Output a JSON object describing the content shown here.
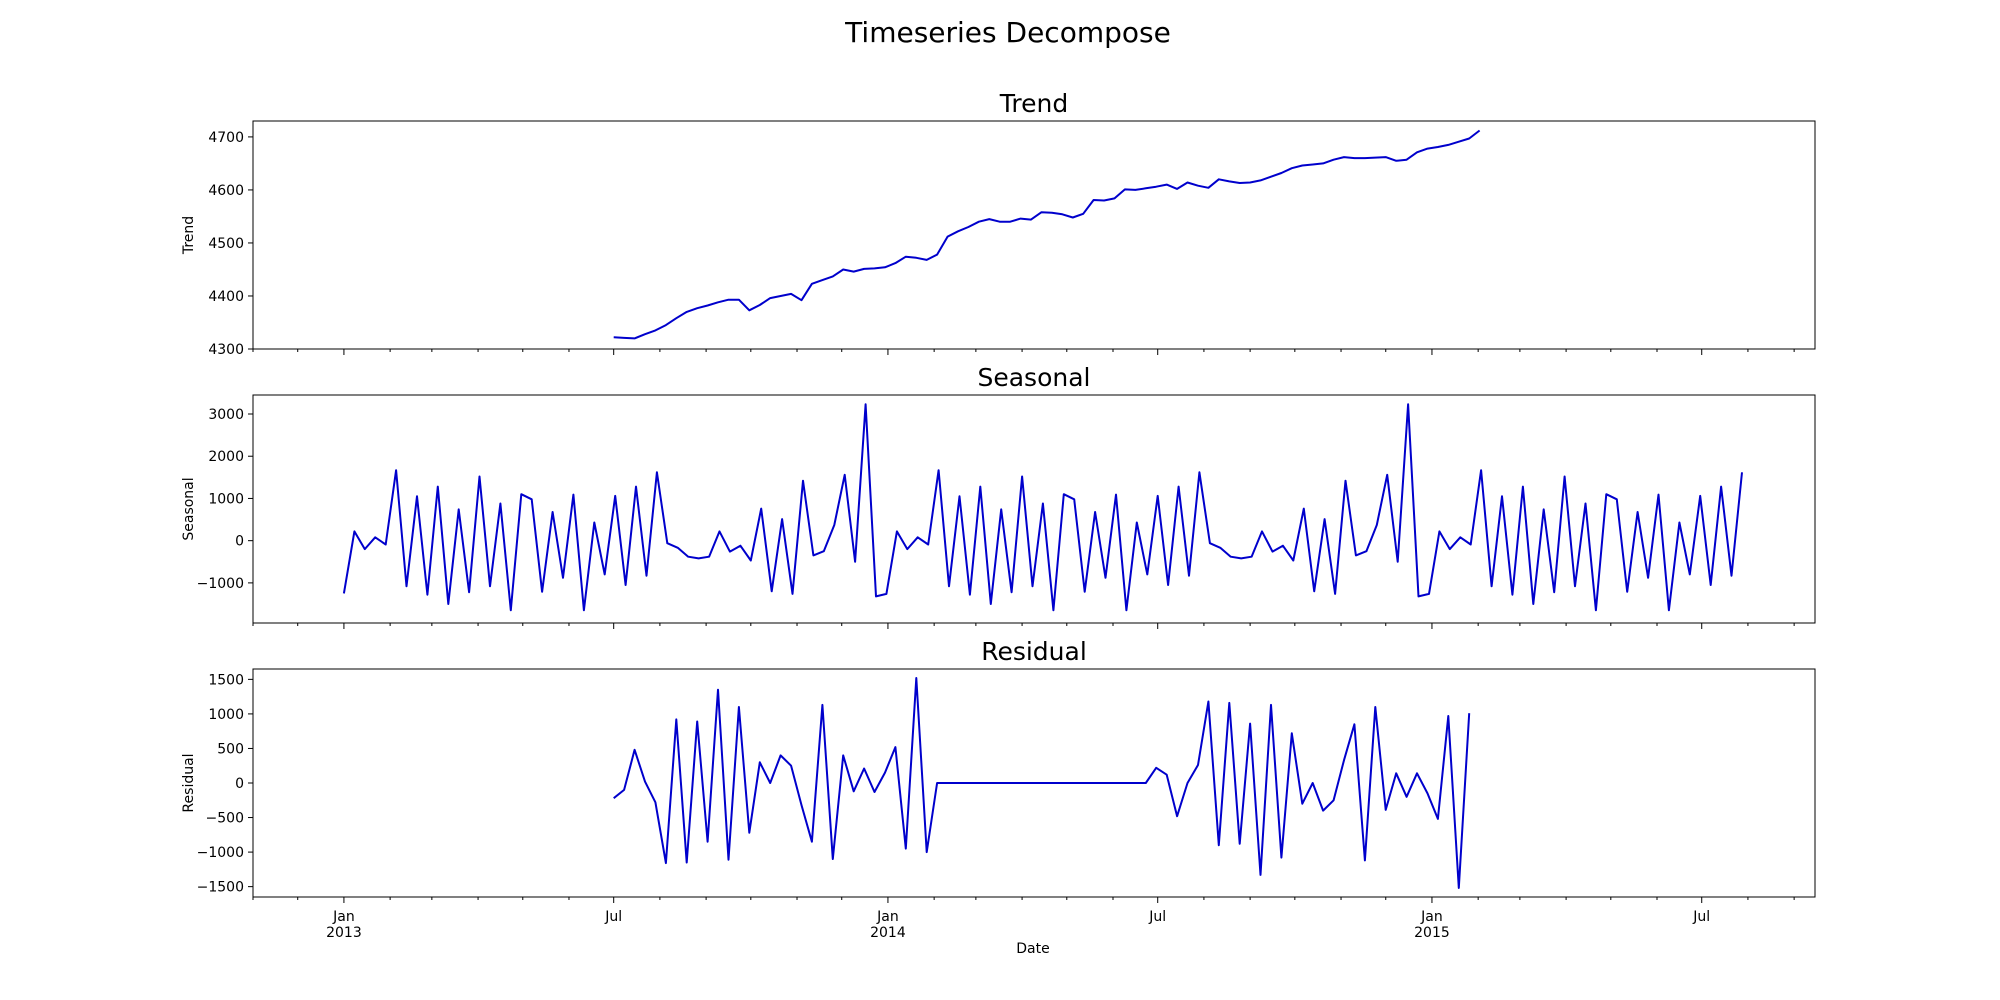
{
  "figure": {
    "title": "Timeseries Decompose",
    "xlabel": "Date",
    "x_tick_labels": [
      {
        "date": "2013-01-01",
        "line1": "Jan",
        "line2": "2013"
      },
      {
        "date": "2013-07-01",
        "line1": "Jul",
        "line2": ""
      },
      {
        "date": "2014-01-01",
        "line1": "Jan",
        "line2": "2014"
      },
      {
        "date": "2014-07-01",
        "line1": "Jul",
        "line2": ""
      },
      {
        "date": "2015-01-01",
        "line1": "Jan",
        "line2": "2015"
      },
      {
        "date": "2015-07-01",
        "line1": "Jul",
        "line2": ""
      }
    ],
    "xlim": [
      "2012-11-01",
      "2015-09-15"
    ],
    "line_color": "#0000cc"
  },
  "chart_data": [
    {
      "type": "line",
      "title": "Trend",
      "ylabel": "Trend",
      "ylim": [
        4300,
        4730
      ],
      "yticks": [
        4300,
        4400,
        4500,
        4600,
        4700
      ],
      "x_start": "2013-07-01",
      "x_step_days": 7,
      "values": [
        4322,
        4321,
        4320,
        4328,
        4335,
        4345,
        4358,
        4370,
        4377,
        4382,
        4388,
        4393,
        4393,
        4373,
        4383,
        4396,
        4400,
        4404,
        4392,
        4423,
        4430,
        4437,
        4450,
        4446,
        4451,
        4452,
        4454,
        4462,
        4474,
        4472,
        4468,
        4478,
        4512,
        4522,
        4530,
        4540,
        4545,
        4540,
        4540,
        4546,
        4544,
        4558,
        4557,
        4554,
        4548,
        4555,
        4581,
        4580,
        4584,
        4601,
        4600,
        4603,
        4606,
        4610,
        4602,
        4614,
        4608,
        4604,
        4620,
        4616,
        4613,
        4614,
        4618,
        4625,
        4632,
        4641,
        4646,
        4648,
        4650,
        4657,
        4662,
        4660,
        4660,
        4661,
        4662,
        4655,
        4657,
        4671,
        4678,
        4681,
        4685,
        4691,
        4697,
        4712
      ]
    },
    {
      "type": "line",
      "title": "Seasonal",
      "ylabel": "Seasonal",
      "ylim": [
        -1950,
        3450
      ],
      "yticks": [
        -1000,
        0,
        1000,
        2000,
        3000
      ],
      "x_start": "2013-01-01",
      "x_step_days": 7,
      "values": [
        -1250,
        220,
        -200,
        80,
        -90,
        1670,
        -1080,
        1050,
        -1280,
        1280,
        -1500,
        740,
        -1220,
        1520,
        -1080,
        880,
        -1650,
        1100,
        980,
        -1210,
        680,
        -880,
        1090,
        -1650,
        430,
        -800,
        1060,
        -1050,
        1280,
        -830,
        1620,
        -60,
        -170,
        -380,
        -420,
        -380,
        220,
        -260,
        -120,
        -470,
        760,
        -1200,
        510,
        -1260,
        1420,
        -350,
        -250,
        370,
        1560,
        -500,
        3230,
        -1320,
        -1260,
        220,
        -200,
        80,
        -90,
        1670,
        -1080,
        1050,
        -1280,
        1280,
        -1500,
        740,
        -1220,
        1520,
        -1080,
        880,
        -1650,
        1100,
        980,
        -1210,
        680,
        -880,
        1090,
        -1650,
        430,
        -800,
        1060,
        -1050,
        1280,
        -830,
        1620,
        -60,
        -170,
        -380,
        -420,
        -380,
        220,
        -260,
        -120,
        -470,
        760,
        -1200,
        510,
        -1260,
        1420,
        -350,
        -250,
        370,
        1560,
        -500,
        3230,
        -1320,
        -1260,
        220,
        -200,
        80,
        -90,
        1670,
        -1080,
        1050,
        -1280,
        1280,
        -1500,
        740,
        -1220,
        1520,
        -1080,
        880,
        -1650,
        1100,
        980,
        -1210,
        680,
        -880,
        1090,
        -1650,
        430,
        -800,
        1060,
        -1050,
        1280,
        -830,
        1620
      ]
    },
    {
      "type": "line",
      "title": "Residual",
      "ylabel": "Residual",
      "ylim": [
        -1650,
        1650
      ],
      "yticks": [
        -1500,
        -1000,
        -500,
        0,
        500,
        1000,
        1500
      ],
      "x_start": "2013-07-01",
      "x_step_days": 7,
      "values": [
        -220,
        -100,
        480,
        20,
        -280,
        -1160,
        920,
        -1150,
        890,
        -850,
        1350,
        -1110,
        1100,
        -720,
        300,
        0,
        400,
        250,
        -320,
        -850,
        1130,
        -1100,
        400,
        -120,
        210,
        -130,
        150,
        520,
        -950,
        1520,
        -1000,
        0,
        0,
        0,
        0,
        0,
        0,
        0,
        0,
        0,
        0,
        0,
        0,
        0,
        0,
        0,
        0,
        0,
        0,
        0,
        0,
        0,
        220,
        120,
        -480,
        0,
        260,
        1180,
        -900,
        1160,
        -880,
        860,
        -1330,
        1130,
        -1080,
        720,
        -300,
        0,
        -400,
        -250,
        330,
        850,
        -1120,
        1100,
        -390,
        140,
        -200,
        140,
        -150,
        -520,
        970,
        -1520,
        1010
      ]
    }
  ]
}
